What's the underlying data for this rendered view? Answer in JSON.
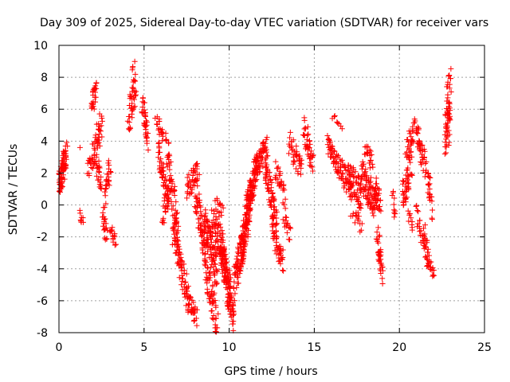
{
  "chart_data": {
    "type": "scatter",
    "title": "Day 309 of 2025, Sidereal Day-to-day VTEC variation (SDTVAR) for receiver vars",
    "xlabel": "GPS time / hours",
    "ylabel": "SDTVAR / TECUs",
    "xlim": [
      0,
      25
    ],
    "ylim": [
      -8,
      10
    ],
    "xticks": [
      0,
      5,
      10,
      15,
      20,
      25
    ],
    "yticks": [
      -8,
      -6,
      -4,
      -2,
      0,
      2,
      4,
      6,
      8,
      10
    ],
    "grid": true,
    "marker": "+",
    "color": "#ff0000",
    "series": [
      {
        "name": "SDTVAR",
        "clusters": [
          {
            "x": [
              0.0,
              0.35
            ],
            "y": [
              1.2,
              2.8
            ],
            "spread": 0.9,
            "n": 60
          },
          {
            "x": [
              0.35,
              0.45
            ],
            "y": [
              2.0,
              3.6
            ],
            "spread": 0.5,
            "n": 15
          },
          {
            "x": [
              1.2,
              1.25
            ],
            "y": [
              3.6,
              3.6
            ],
            "spread": 0.0,
            "n": 1
          },
          {
            "x": [
              1.25,
              1.4
            ],
            "y": [
              -0.5,
              -1.0
            ],
            "spread": 0.3,
            "n": 8
          },
          {
            "x": [
              1.7,
              2.0
            ],
            "y": [
              2.0,
              3.0
            ],
            "spread": 0.6,
            "n": 15
          },
          {
            "x": [
              1.9,
              2.2
            ],
            "y": [
              6.2,
              7.2
            ],
            "spread": 0.6,
            "n": 25
          },
          {
            "x": [
              2.0,
              2.5
            ],
            "y": [
              3.0,
              5.0
            ],
            "spread": 1.0,
            "n": 40
          },
          {
            "x": [
              2.2,
              2.5
            ],
            "y": [
              2.5,
              1.5
            ],
            "spread": 0.7,
            "n": 20
          },
          {
            "x": [
              2.6,
              2.8
            ],
            "y": [
              -0.5,
              -2.0
            ],
            "spread": 0.6,
            "n": 20
          },
          {
            "x": [
              2.7,
              3.0
            ],
            "y": [
              0.5,
              2.5
            ],
            "spread": 0.8,
            "n": 25
          },
          {
            "x": [
              3.0,
              3.3
            ],
            "y": [
              -1.5,
              -2.2
            ],
            "spread": 0.4,
            "n": 15
          },
          {
            "x": [
              4.1,
              4.5
            ],
            "y": [
              5.5,
              7.5
            ],
            "spread": 1.0,
            "n": 40
          },
          {
            "x": [
              4.3,
              4.4
            ],
            "y": [
              8.5,
              8.9
            ],
            "spread": 0.2,
            "n": 4
          },
          {
            "x": [
              4.9,
              5.2
            ],
            "y": [
              6.3,
              4.0
            ],
            "spread": 0.7,
            "n": 35
          },
          {
            "x": [
              5.7,
              6.1
            ],
            "y": [
              5.3,
              4.5
            ],
            "spread": 0.5,
            "n": 20
          },
          {
            "x": [
              5.8,
              6.4
            ],
            "y": [
              3.5,
              0.5
            ],
            "spread": 0.8,
            "n": 45
          },
          {
            "x": [
              6.1,
              6.5
            ],
            "y": [
              -0.5,
              1.0
            ],
            "spread": 0.8,
            "n": 25
          },
          {
            "x": [
              6.3,
              7.0
            ],
            "y": [
              4.0,
              -2.0
            ],
            "spread": 1.0,
            "n": 60
          },
          {
            "x": [
              6.7,
              7.6
            ],
            "y": [
              -1.5,
              -6.0
            ],
            "spread": 1.0,
            "n": 80
          },
          {
            "x": [
              7.6,
              8.1
            ],
            "y": [
              -6.0,
              -7.0
            ],
            "spread": 0.6,
            "n": 30
          },
          {
            "x": [
              7.5,
              8.2
            ],
            "y": [
              1.0,
              2.3
            ],
            "spread": 0.7,
            "n": 40
          },
          {
            "x": [
              8.0,
              8.6
            ],
            "y": [
              1.0,
              -3.0
            ],
            "spread": 1.0,
            "n": 60
          },
          {
            "x": [
              8.5,
              9.3
            ],
            "y": [
              -1.0,
              -4.0
            ],
            "spread": 1.2,
            "n": 90
          },
          {
            "x": [
              8.6,
              9.3
            ],
            "y": [
              -4.0,
              -7.5
            ],
            "spread": 1.0,
            "n": 60
          },
          {
            "x": [
              9.0,
              9.8
            ],
            "y": [
              -1.0,
              -3.0
            ],
            "spread": 1.0,
            "n": 60
          },
          {
            "x": [
              9.2,
              9.6
            ],
            "y": [
              0.0,
              -0.5
            ],
            "spread": 0.5,
            "n": 15
          },
          {
            "x": [
              9.5,
              10.1
            ],
            "y": [
              -3.0,
              -5.5
            ],
            "spread": 1.0,
            "n": 90
          },
          {
            "x": [
              9.9,
              10.3
            ],
            "y": [
              -5.5,
              -7.3
            ],
            "spread": 0.8,
            "n": 40
          },
          {
            "x": [
              10.3,
              10.9
            ],
            "y": [
              -5.0,
              -2.0
            ],
            "spread": 1.1,
            "n": 80
          },
          {
            "x": [
              10.7,
              11.3
            ],
            "y": [
              -3.0,
              0.5
            ],
            "spread": 1.0,
            "n": 80
          },
          {
            "x": [
              11.0,
              11.6
            ],
            "y": [
              -0.5,
              2.5
            ],
            "spread": 1.0,
            "n": 70
          },
          {
            "x": [
              11.5,
              12.2
            ],
            "y": [
              2.0,
              3.8
            ],
            "spread": 0.8,
            "n": 60
          },
          {
            "x": [
              12.1,
              12.8
            ],
            "y": [
              2.5,
              -1.5
            ],
            "spread": 1.0,
            "n": 70
          },
          {
            "x": [
              12.5,
              13.2
            ],
            "y": [
              -1.5,
              -3.5
            ],
            "spread": 0.8,
            "n": 40
          },
          {
            "x": [
              12.7,
              13.3
            ],
            "y": [
              2.0,
              0.5
            ],
            "spread": 0.8,
            "n": 30
          },
          {
            "x": [
              13.2,
              13.6
            ],
            "y": [
              -0.5,
              -2.0
            ],
            "spread": 0.6,
            "n": 15
          },
          {
            "x": [
              13.5,
              14.3
            ],
            "y": [
              4.0,
              2.0
            ],
            "spread": 0.8,
            "n": 40
          },
          {
            "x": [
              14.4,
              14.9
            ],
            "y": [
              5.0,
              2.5
            ],
            "spread": 0.8,
            "n": 40
          },
          {
            "x": [
              15.8,
              16.4
            ],
            "y": [
              3.8,
              2.5
            ],
            "spread": 0.6,
            "n": 40
          },
          {
            "x": [
              16.1,
              16.6
            ],
            "y": [
              5.5,
              4.5
            ],
            "spread": 0.4,
            "n": 8
          },
          {
            "x": [
              16.4,
              17.2
            ],
            "y": [
              2.5,
              1.0
            ],
            "spread": 0.8,
            "n": 50
          },
          {
            "x": [
              17.0,
              17.8
            ],
            "y": [
              1.8,
              0.5
            ],
            "spread": 1.0,
            "n": 60
          },
          {
            "x": [
              17.2,
              17.8
            ],
            "y": [
              -0.5,
              -1.3
            ],
            "spread": 0.5,
            "n": 15
          },
          {
            "x": [
              17.8,
              18.6
            ],
            "y": [
              1.8,
              0.0
            ],
            "spread": 1.0,
            "n": 80
          },
          {
            "x": [
              18.0,
              18.4
            ],
            "y": [
              3.5,
              2.5
            ],
            "spread": 0.6,
            "n": 20
          },
          {
            "x": [
              18.6,
              18.9
            ],
            "y": [
              1.0,
              0.0
            ],
            "spread": 0.8,
            "n": 25
          },
          {
            "x": [
              18.7,
              19.0
            ],
            "y": [
              -2.0,
              -4.3
            ],
            "spread": 0.8,
            "n": 35
          },
          {
            "x": [
              19.6,
              19.8
            ],
            "y": [
              0.8,
              -1.0
            ],
            "spread": 0.6,
            "n": 10
          },
          {
            "x": [
              20.2,
              20.7
            ],
            "y": [
              0.5,
              2.5
            ],
            "spread": 1.0,
            "n": 45
          },
          {
            "x": [
              20.4,
              20.9
            ],
            "y": [
              3.5,
              4.8
            ],
            "spread": 0.8,
            "n": 30
          },
          {
            "x": [
              20.5,
              20.8
            ],
            "y": [
              -0.5,
              -1.3
            ],
            "spread": 0.5,
            "n": 10
          },
          {
            "x": [
              21.0,
              21.5
            ],
            "y": [
              4.5,
              2.5
            ],
            "spread": 0.8,
            "n": 40
          },
          {
            "x": [
              21.0,
              21.3
            ],
            "y": [
              -0.5,
              -1.8
            ],
            "spread": 0.6,
            "n": 15
          },
          {
            "x": [
              21.4,
              21.7
            ],
            "y": [
              -1.5,
              -3.5
            ],
            "spread": 0.8,
            "n": 30
          },
          {
            "x": [
              21.6,
              21.9
            ],
            "y": [
              2.5,
              -0.5
            ],
            "spread": 0.8,
            "n": 25
          },
          {
            "x": [
              21.7,
              22.0
            ],
            "y": [
              -3.5,
              -4.2
            ],
            "spread": 0.4,
            "n": 15
          },
          {
            "x": [
              22.7,
              23.0
            ],
            "y": [
              4.5,
              6.5
            ],
            "spread": 1.0,
            "n": 40
          },
          {
            "x": [
              22.8,
              23.0
            ],
            "y": [
              7.0,
              8.1
            ],
            "spread": 0.6,
            "n": 15
          },
          {
            "x": [
              22.7,
              22.9
            ],
            "y": [
              3.5,
              4.2
            ],
            "spread": 0.4,
            "n": 8
          }
        ]
      }
    ]
  }
}
